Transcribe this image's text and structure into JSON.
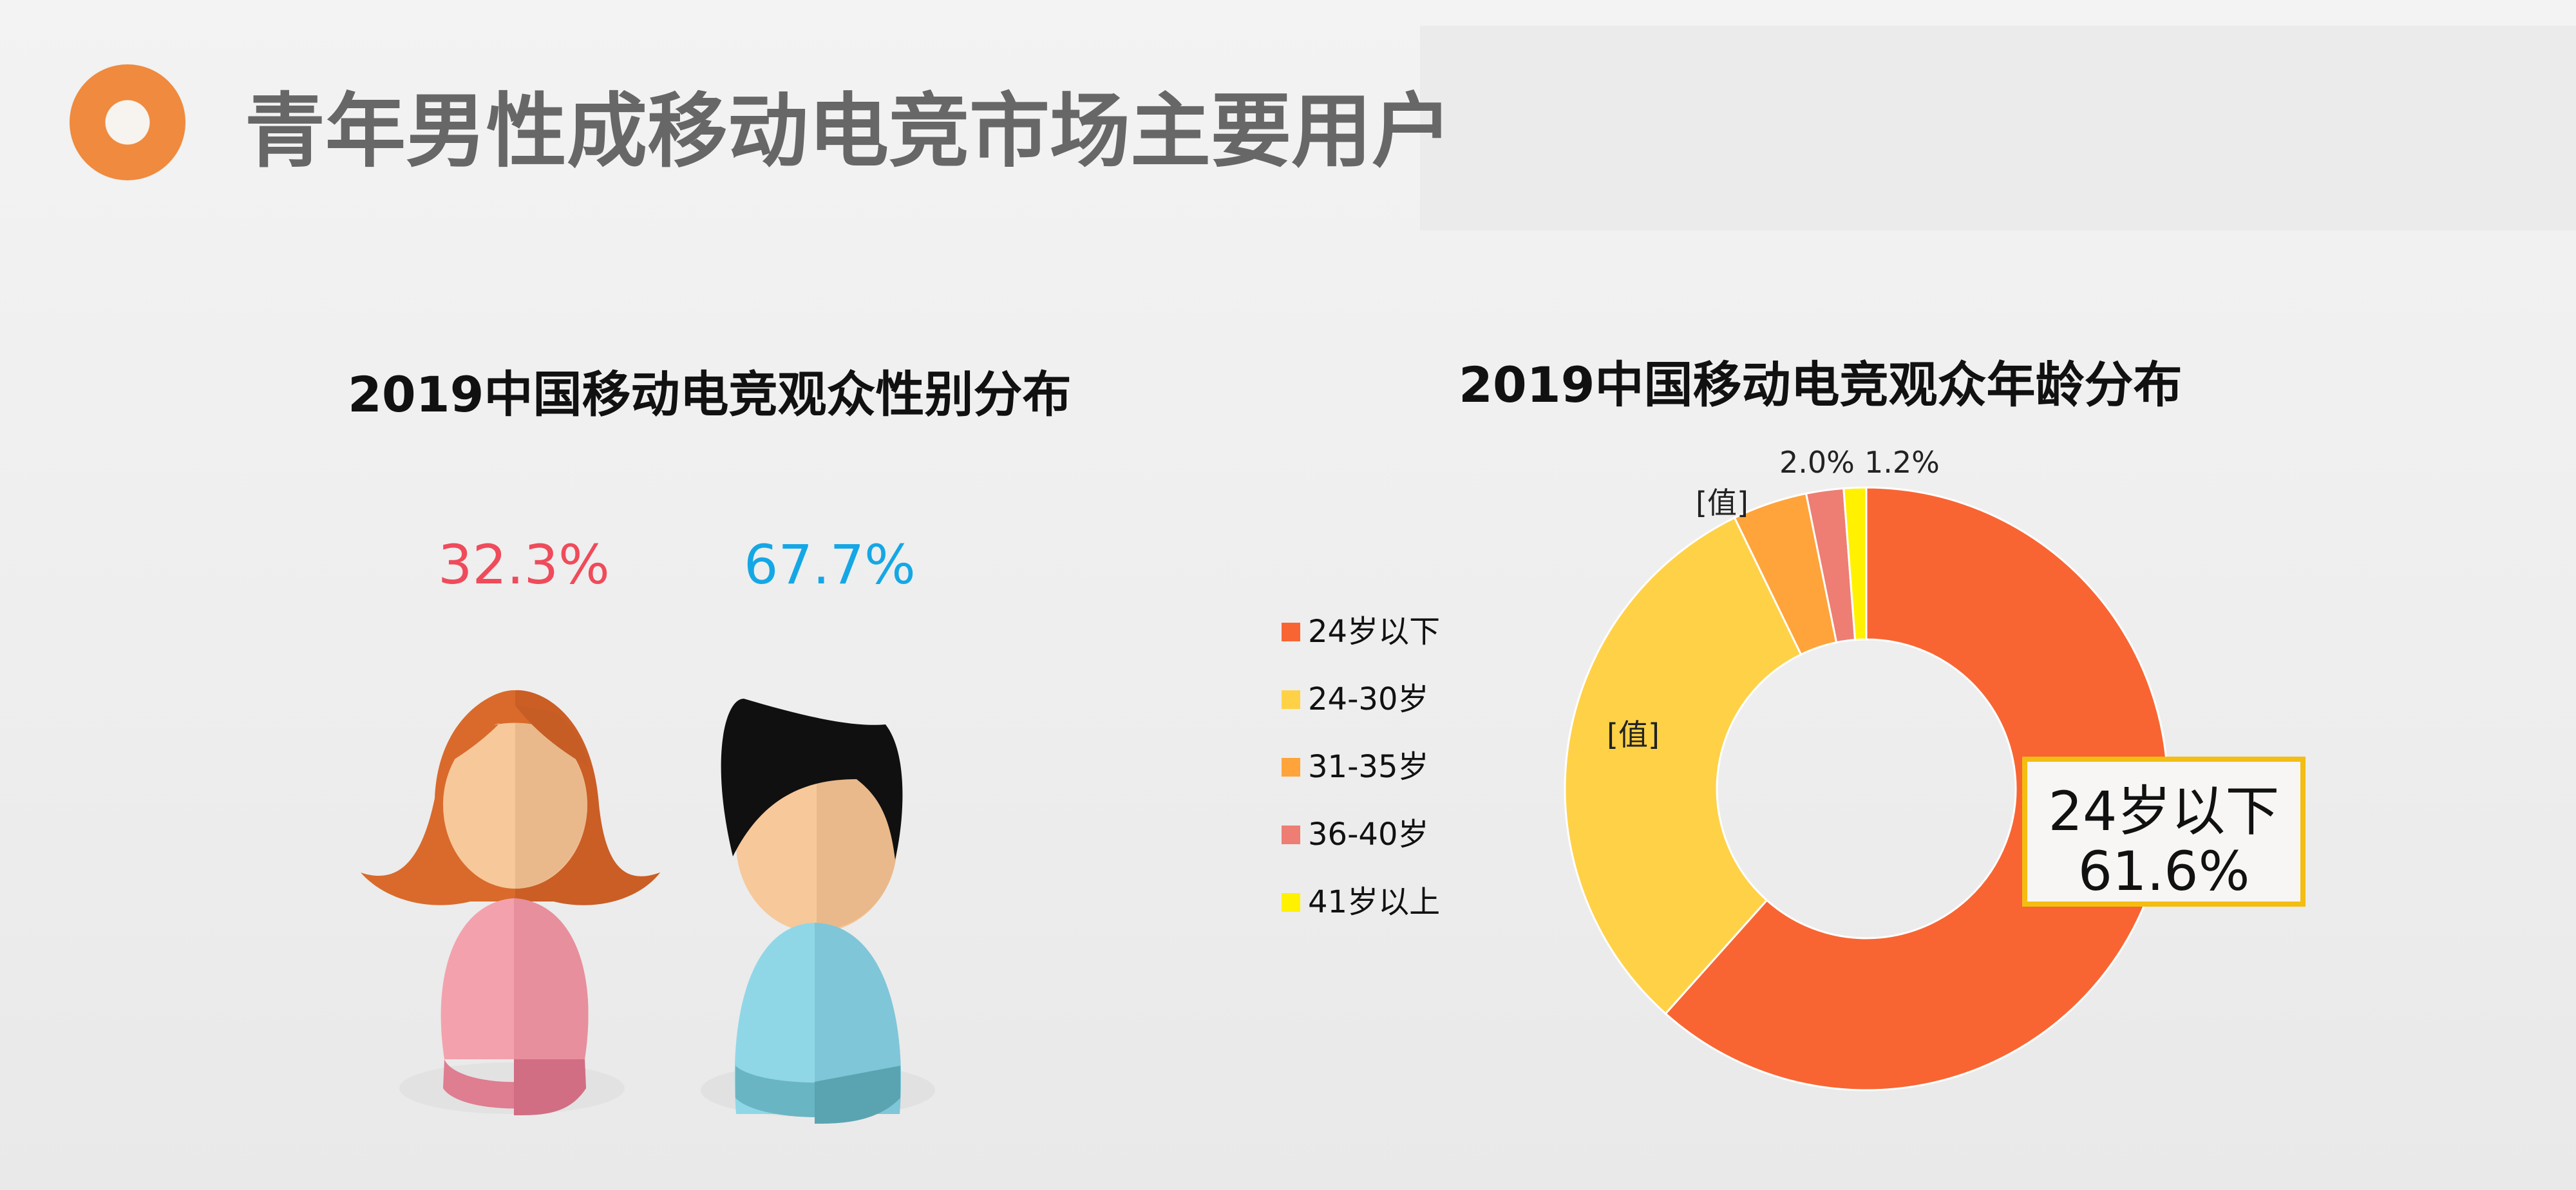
{
  "slide": {
    "title": "青年男性成移动电竞市场主要用户"
  },
  "gender_chart": {
    "title": "2019中国移动电竞观众性别分布",
    "female_label": "32.3%",
    "male_label": "67.7%",
    "female_color": "#ef4b5b",
    "male_color": "#15a7e5"
  },
  "age_chart": {
    "title": "2019中国移动电竞观众年龄分布",
    "legend": [
      {
        "label": "24岁以下",
        "color": "#f86533"
      },
      {
        "label": "24-30岁",
        "color": "#ffd147"
      },
      {
        "label": "31-35岁",
        "color": "#ffa43a"
      },
      {
        "label": "36-40岁",
        "color": "#ee7d73"
      },
      {
        "label": "41岁以上",
        "color": "#fff100"
      }
    ],
    "visible_labels": {
      "label_31_35": "[值]",
      "label_24_30": "[值]",
      "label_36_40": "2.0%",
      "label_41_plus": "1.2%"
    },
    "callout": {
      "name": "24岁以下",
      "value": "61.6%"
    }
  },
  "chart_data": [
    {
      "type": "pie",
      "title": "2019中国移动电竞观众性别分布",
      "labels": [
        "32.3%",
        "67.7%"
      ],
      "values": [
        32.3,
        67.7
      ],
      "colors": [
        "#ef4b5b",
        "#15a7e5"
      ]
    },
    {
      "type": "pie",
      "title": "2019中国移动电竞观众年龄分布",
      "categories": [
        "24岁以下",
        "24-30岁",
        "31-35岁",
        "36-40岁",
        "41岁以上"
      ],
      "values": [
        61.6,
        31.2,
        4.0,
        2.0,
        1.2
      ],
      "colors": [
        "#f86533",
        "#ffd147",
        "#ffa43a",
        "#ee7d73",
        "#fff100"
      ],
      "legend_position": "left",
      "data_labels": [
        "61.6%",
        "[值]",
        "[值]",
        "2.0%",
        "1.2%"
      ]
    }
  ]
}
